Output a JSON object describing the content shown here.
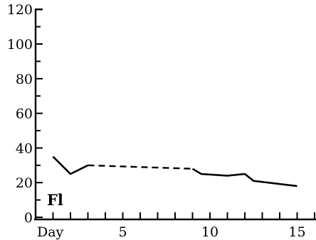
{
  "chart_data": {
    "type": "line",
    "title": "",
    "xlabel": "",
    "ylabel": "",
    "series_label": "Fl",
    "x_first_label": "Day",
    "xlim": [
      0,
      16
    ],
    "ylim": [
      0,
      120
    ],
    "x_ticks": [
      5,
      10,
      15
    ],
    "y_ticks": [
      0,
      20,
      40,
      60,
      80,
      100,
      120
    ],
    "grid": false,
    "series": [
      {
        "name": "Fl",
        "segments": [
          {
            "style": "solid",
            "x": [
              1,
              2,
              3
            ],
            "y": [
              35,
              25,
              30
            ]
          },
          {
            "style": "dashed",
            "x": [
              3,
              9
            ],
            "y": [
              30,
              28
            ]
          },
          {
            "style": "solid",
            "x": [
              9,
              9.5,
              11,
              12,
              12.5,
              15
            ],
            "y": [
              28,
              25,
              24,
              25,
              21,
              18
            ]
          }
        ]
      }
    ]
  }
}
